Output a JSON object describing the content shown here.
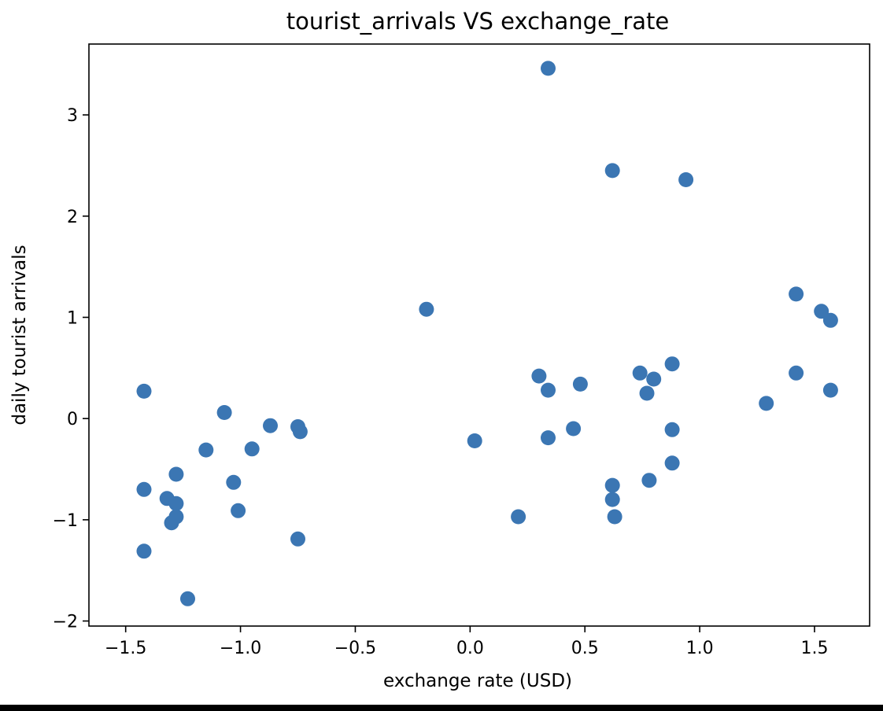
{
  "chart_data": {
    "type": "scatter",
    "title": "tourist_arrivals VS exchange_rate",
    "xlabel": "exchange rate (USD)",
    "ylabel": "daily tourist arrivals",
    "xlim": [
      -1.66,
      1.74
    ],
    "ylim": [
      -2.05,
      3.7
    ],
    "xticks": [
      -1.5,
      -1.0,
      -0.5,
      0.0,
      0.5,
      1.0,
      1.5
    ],
    "xtick_labels": [
      "−1.5",
      "−1.0",
      "−0.5",
      "0.0",
      "0.5",
      "1.0",
      "1.5"
    ],
    "yticks": [
      -2,
      -1,
      0,
      1,
      2,
      3
    ],
    "ytick_labels": [
      "−2",
      "−1",
      "0",
      "1",
      "2",
      "3"
    ],
    "grid": false,
    "marker_color": "#3b76b3",
    "points": [
      {
        "x": -1.42,
        "y": 0.27
      },
      {
        "x": -1.42,
        "y": -0.7
      },
      {
        "x": -1.42,
        "y": -1.31
      },
      {
        "x": -1.32,
        "y": -0.79
      },
      {
        "x": -1.3,
        "y": -1.03
      },
      {
        "x": -1.28,
        "y": -0.84
      },
      {
        "x": -1.28,
        "y": -0.55
      },
      {
        "x": -1.28,
        "y": -0.97
      },
      {
        "x": -1.23,
        "y": -1.78
      },
      {
        "x": -1.15,
        "y": -0.31
      },
      {
        "x": -1.07,
        "y": 0.06
      },
      {
        "x": -1.03,
        "y": -0.63
      },
      {
        "x": -1.01,
        "y": -0.91
      },
      {
        "x": -0.95,
        "y": -0.3
      },
      {
        "x": -0.87,
        "y": -0.07
      },
      {
        "x": -0.75,
        "y": -0.08
      },
      {
        "x": -0.74,
        "y": -0.13
      },
      {
        "x": -0.75,
        "y": -1.19
      },
      {
        "x": -0.19,
        "y": 1.08
      },
      {
        "x": 0.02,
        "y": -0.22
      },
      {
        "x": 0.21,
        "y": -0.97
      },
      {
        "x": 0.3,
        "y": 0.42
      },
      {
        "x": 0.34,
        "y": 0.28
      },
      {
        "x": 0.34,
        "y": -0.19
      },
      {
        "x": 0.34,
        "y": 3.46
      },
      {
        "x": 0.45,
        "y": -0.1
      },
      {
        "x": 0.48,
        "y": 0.34
      },
      {
        "x": 0.62,
        "y": 2.45
      },
      {
        "x": 0.62,
        "y": -0.66
      },
      {
        "x": 0.62,
        "y": -0.8
      },
      {
        "x": 0.63,
        "y": -0.97
      },
      {
        "x": 0.74,
        "y": 0.45
      },
      {
        "x": 0.77,
        "y": 0.25
      },
      {
        "x": 0.78,
        "y": -0.61
      },
      {
        "x": 0.8,
        "y": 0.39
      },
      {
        "x": 0.88,
        "y": 0.54
      },
      {
        "x": 0.88,
        "y": -0.11
      },
      {
        "x": 0.88,
        "y": -0.44
      },
      {
        "x": 0.94,
        "y": 2.36
      },
      {
        "x": 1.29,
        "y": 0.15
      },
      {
        "x": 1.42,
        "y": 1.23
      },
      {
        "x": 1.42,
        "y": 0.45
      },
      {
        "x": 1.53,
        "y": 1.06
      },
      {
        "x": 1.57,
        "y": 0.97
      },
      {
        "x": 1.57,
        "y": 0.28
      }
    ]
  }
}
